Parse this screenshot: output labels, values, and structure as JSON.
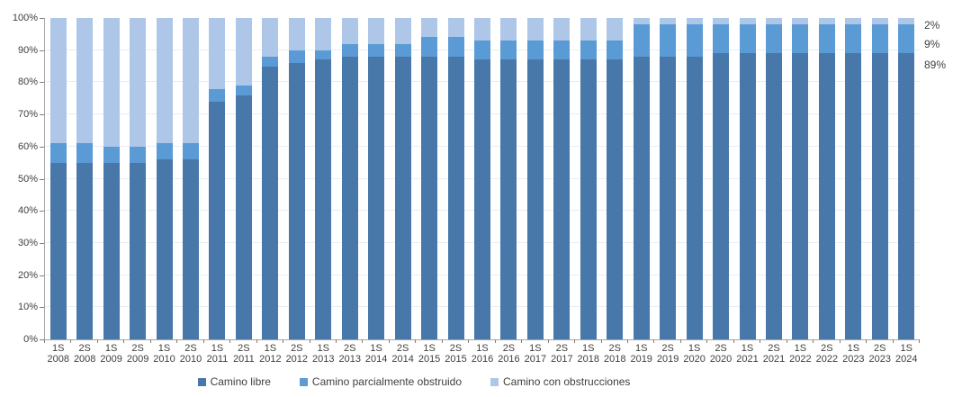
{
  "chart_data": {
    "type": "bar",
    "stacked": true,
    "unit": "percent",
    "title": "",
    "xlabel": "",
    "ylabel": "",
    "ylim": [
      0,
      100
    ],
    "ytick_step": 10,
    "ytick_suffix": "%",
    "grid": true,
    "legend_position": "bottom",
    "categories": [
      "1S 2008",
      "2S 2008",
      "1S 2009",
      "2S 2009",
      "1S 2010",
      "2S 2010",
      "1S 2011",
      "2S 2011",
      "1S 2012",
      "2S 2012",
      "1S 2013",
      "2S 2013",
      "1S 2014",
      "2S 2014",
      "1S 2015",
      "2S 2015",
      "1S 2016",
      "2S 2016",
      "1S 2017",
      "2S 2017",
      "1S 2018",
      "2S 2018",
      "1S 2019",
      "2S 2019",
      "1S 2020",
      "2S 2020",
      "1S 2021",
      "2S 2021",
      "1S 2022",
      "2S 2022",
      "1S 2023",
      "2S 2023",
      "1S 2024"
    ],
    "series": [
      {
        "name": "Camino libre",
        "color": "#4878AA",
        "values": [
          55,
          55,
          55,
          55,
          56,
          56,
          74,
          76,
          85,
          86,
          87,
          88,
          88,
          88,
          88,
          88,
          87,
          87,
          87,
          87,
          87,
          87,
          88,
          88,
          88,
          89,
          89,
          89,
          89,
          89,
          89,
          89,
          89
        ]
      },
      {
        "name": "Camino parcialmente obstruido",
        "color": "#5A9BD5",
        "values": [
          6,
          6,
          5,
          5,
          5,
          5,
          4,
          3,
          3,
          4,
          3,
          4,
          4,
          4,
          6,
          6,
          6,
          6,
          6,
          6,
          6,
          6,
          10,
          10,
          10,
          9,
          9,
          9,
          9,
          9,
          9,
          9,
          9
        ]
      },
      {
        "name": "Camino con obstrucciones",
        "color": "#AEC7E8",
        "values": [
          39,
          39,
          40,
          40,
          39,
          39,
          22,
          21,
          12,
          10,
          10,
          8,
          8,
          8,
          6,
          6,
          7,
          7,
          7,
          7,
          7,
          7,
          2,
          2,
          2,
          2,
          2,
          2,
          2,
          2,
          2,
          2,
          2
        ]
      }
    ],
    "end_labels": [
      {
        "text": "2%",
        "series": "Camino con obstrucciones"
      },
      {
        "text": "9%",
        "series": "Camino parcialmente obstruido"
      },
      {
        "text": "89%",
        "series": "Camino libre"
      }
    ]
  },
  "colors": {
    "background": "#FFFFFF",
    "axis_line": "#A6A6A6",
    "tick": "#808080",
    "gridline": "#E9EDF2",
    "text": "#404040"
  }
}
